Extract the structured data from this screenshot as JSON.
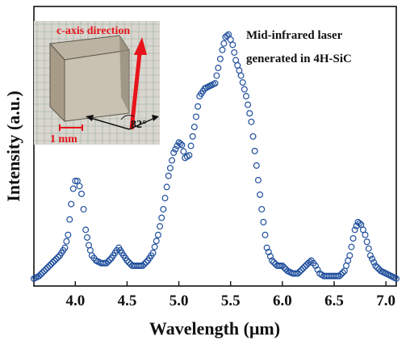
{
  "chart_data": {
    "type": "scatter",
    "xlabel": "Wavelength (μm)",
    "ylabel": "Intensity (a.u.)",
    "xlim": [
      3.6,
      7.1
    ],
    "ylim": [
      0,
      1.0
    ],
    "x_ticks": [
      "4.0",
      "4.5",
      "5.0",
      "5.5",
      "6.0",
      "6.5",
      "7.0"
    ],
    "y_ticks_shown": false,
    "grid": false,
    "marker": "open-circle",
    "series_color": "#1f4e9c",
    "annotations": {
      "line1": "Mid-infrared laser",
      "line2": "generated in 4H-SiC"
    },
    "inset": {
      "direction_label": "c-axis direction",
      "angle_label": "82°",
      "scale_label": "1 mm",
      "arrow_color": "#e8141b"
    },
    "points": [
      [
        3.6,
        0.01
      ],
      [
        3.65,
        0.02
      ],
      [
        3.7,
        0.04
      ],
      [
        3.75,
        0.06
      ],
      [
        3.8,
        0.08
      ],
      [
        3.85,
        0.1
      ],
      [
        3.9,
        0.13
      ],
      [
        3.93,
        0.18
      ],
      [
        3.96,
        0.3
      ],
      [
        3.98,
        0.36
      ],
      [
        4.0,
        0.39
      ],
      [
        4.02,
        0.39
      ],
      [
        4.04,
        0.37
      ],
      [
        4.06,
        0.34
      ],
      [
        4.08,
        0.28
      ],
      [
        4.1,
        0.2
      ],
      [
        4.13,
        0.14
      ],
      [
        4.16,
        0.1
      ],
      [
        4.2,
        0.08
      ],
      [
        4.25,
        0.07
      ],
      [
        4.3,
        0.07
      ],
      [
        4.35,
        0.09
      ],
      [
        4.4,
        0.12
      ],
      [
        4.42,
        0.13
      ],
      [
        4.45,
        0.11
      ],
      [
        4.5,
        0.08
      ],
      [
        4.55,
        0.06
      ],
      [
        4.6,
        0.06
      ],
      [
        4.65,
        0.06
      ],
      [
        4.7,
        0.08
      ],
      [
        4.75,
        0.11
      ],
      [
        4.8,
        0.18
      ],
      [
        4.85,
        0.28
      ],
      [
        4.9,
        0.41
      ],
      [
        4.95,
        0.5
      ],
      [
        5.0,
        0.54
      ],
      [
        5.03,
        0.53
      ],
      [
        5.06,
        0.48
      ],
      [
        5.1,
        0.49
      ],
      [
        5.15,
        0.6
      ],
      [
        5.2,
        0.72
      ],
      [
        5.25,
        0.75
      ],
      [
        5.3,
        0.76
      ],
      [
        5.35,
        0.77
      ],
      [
        5.38,
        0.83
      ],
      [
        5.42,
        0.9
      ],
      [
        5.45,
        0.95
      ],
      [
        5.48,
        0.96
      ],
      [
        5.52,
        0.92
      ],
      [
        5.55,
        0.86
      ],
      [
        5.6,
        0.8
      ],
      [
        5.65,
        0.72
      ],
      [
        5.7,
        0.62
      ],
      [
        5.75,
        0.45
      ],
      [
        5.8,
        0.28
      ],
      [
        5.85,
        0.13
      ],
      [
        5.9,
        0.08
      ],
      [
        5.95,
        0.06
      ],
      [
        6.0,
        0.06
      ],
      [
        6.05,
        0.04
      ],
      [
        6.1,
        0.03
      ],
      [
        6.15,
        0.03
      ],
      [
        6.2,
        0.05
      ],
      [
        6.25,
        0.07
      ],
      [
        6.28,
        0.08
      ],
      [
        6.32,
        0.06
      ],
      [
        6.36,
        0.03
      ],
      [
        6.4,
        0.02
      ],
      [
        6.45,
        0.02
      ],
      [
        6.5,
        0.02
      ],
      [
        6.55,
        0.02
      ],
      [
        6.6,
        0.04
      ],
      [
        6.65,
        0.1
      ],
      [
        6.7,
        0.2
      ],
      [
        6.73,
        0.23
      ],
      [
        6.76,
        0.22
      ],
      [
        6.8,
        0.18
      ],
      [
        6.85,
        0.1
      ],
      [
        6.9,
        0.06
      ],
      [
        6.95,
        0.04
      ],
      [
        7.0,
        0.03
      ],
      [
        7.05,
        0.02
      ],
      [
        7.1,
        0.01
      ]
    ]
  }
}
